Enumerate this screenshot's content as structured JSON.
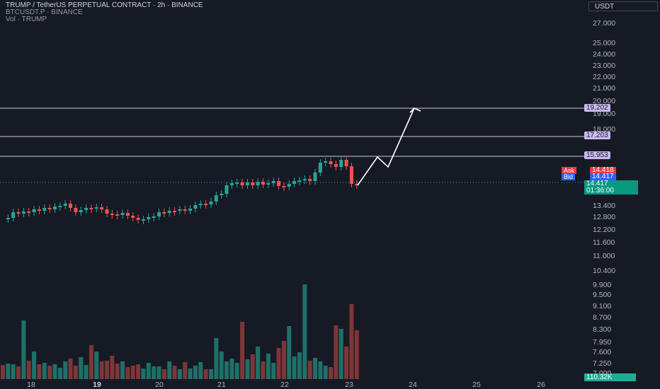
{
  "legend": {
    "title": "TRUMP / TetherUS PERPETUAL CONTRACT · 2h · BINANCE",
    "compare": "BTCUSDT.P · BINANCE",
    "volume": "Vol · TRUMP"
  },
  "axis": {
    "currency": "USDT",
    "ticks": [
      "27.000",
      "25.000",
      "24.000",
      "23.000",
      "22.000",
      "21.000",
      "20.000",
      "19.000",
      "18.000",
      "13.400",
      "12.800",
      "12.200",
      "11.600",
      "11.000",
      "10.400",
      "9.900",
      "9.500",
      "9.100",
      "8.700",
      "8.300",
      "7.950",
      "7.600",
      "7.250",
      "7.000"
    ],
    "levels": [
      "19.202",
      "17.203",
      "15.953"
    ],
    "ask_label": "Ask",
    "ask_value": "14.418",
    "bid_label": "Bid",
    "bid_value": "14.417",
    "current_price": "14.417",
    "countdown": "01:36:00",
    "volume_value": "110.32K"
  },
  "time_axis": [
    "18",
    "19",
    "20",
    "21",
    "22",
    "23",
    "24",
    "25",
    "26"
  ],
  "colors": {
    "up": "#26a69a",
    "down": "#ef5350",
    "level_line": "#c9b8f0",
    "projection": "#ffffff"
  },
  "chart_data": {
    "type": "candlestick",
    "symbol": "TRUMP / TetherUS PERPETUAL CONTRACT",
    "interval": "2h",
    "x": [
      "18",
      "19",
      "20",
      "21",
      "22",
      "23",
      "24",
      "25",
      "26"
    ],
    "horizontal_levels": [
      19.202,
      17.203,
      15.953
    ],
    "last_price": 14.417
  }
}
